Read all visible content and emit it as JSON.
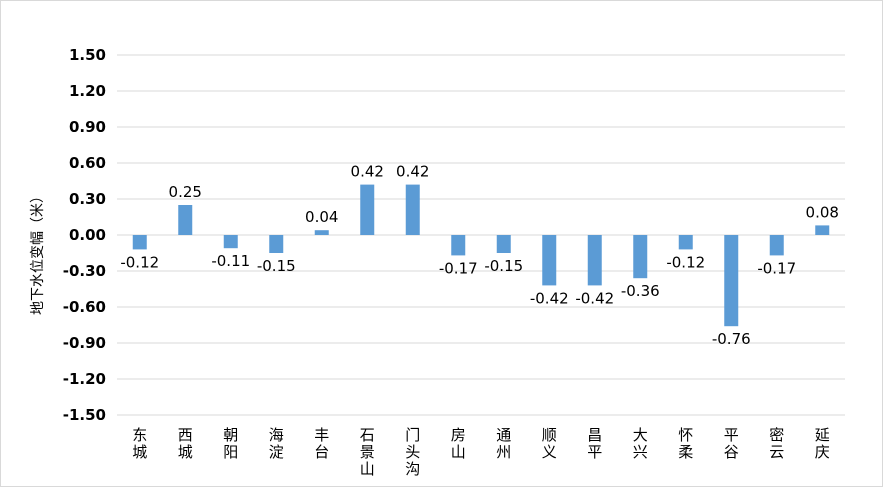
{
  "chart_data": {
    "type": "bar",
    "title": "",
    "xlabel": "",
    "ylabel": "地下水位变幅（米）",
    "ylim": [
      -1.5,
      1.5
    ],
    "yticks": [
      1.5,
      1.2,
      0.9,
      0.6,
      0.3,
      0.0,
      -0.3,
      -0.6,
      -0.9,
      -1.2,
      -1.5
    ],
    "ytick_labels": [
      "1.50",
      "1.20",
      "0.90",
      "0.60",
      "0.30",
      "0.00",
      "-0.30",
      "-0.60",
      "-0.90",
      "-1.20",
      "-1.50"
    ],
    "grid": true,
    "bar_color": "#5b9bd5",
    "categories": [
      "东城",
      "西城",
      "朝阳",
      "海淀",
      "丰台",
      "石景山",
      "门头沟",
      "房山",
      "通州",
      "顺义",
      "昌平",
      "大兴",
      "怀柔",
      "平谷",
      "密云",
      "延庆"
    ],
    "category_lines": [
      [
        "东",
        "城"
      ],
      [
        "西",
        "城"
      ],
      [
        "朝",
        "阳"
      ],
      [
        "海",
        "淀"
      ],
      [
        "丰",
        "台"
      ],
      [
        "石",
        "景",
        "山"
      ],
      [
        "门",
        "头",
        "沟"
      ],
      [
        "房",
        "山"
      ],
      [
        "通",
        "州"
      ],
      [
        "顺",
        "义"
      ],
      [
        "昌",
        "平"
      ],
      [
        "大",
        "兴"
      ],
      [
        "怀",
        "柔"
      ],
      [
        "平",
        "谷"
      ],
      [
        "密",
        "云"
      ],
      [
        "延",
        "庆"
      ]
    ],
    "values": [
      -0.12,
      0.25,
      -0.11,
      -0.15,
      0.04,
      0.42,
      0.42,
      -0.17,
      -0.15,
      -0.42,
      -0.42,
      -0.36,
      -0.12,
      -0.76,
      -0.17,
      0.08
    ],
    "value_labels": [
      "-0.12",
      "0.25",
      "-0.11",
      "-0.15",
      "0.04",
      "0.42",
      "0.42",
      "-0.17",
      "-0.15",
      "-0.42",
      "-0.42",
      "-0.36",
      "-0.12",
      "-0.76",
      "-0.17",
      "0.08"
    ]
  }
}
